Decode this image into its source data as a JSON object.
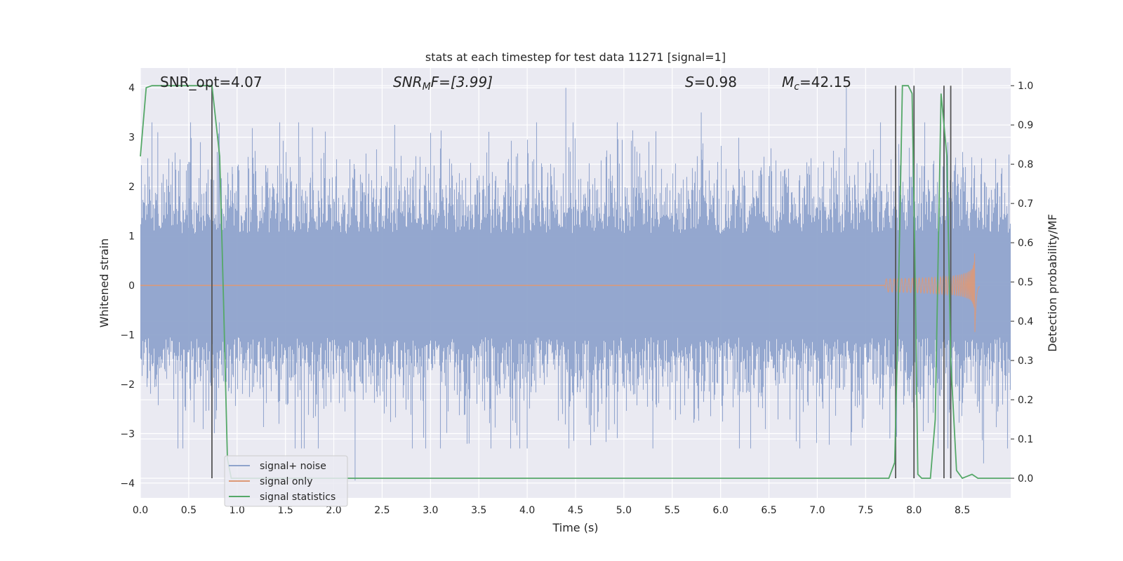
{
  "chart_data": {
    "type": "line",
    "title": "stats at each timestep for test data 11271 [signal=1]",
    "xlabel": "Time (s)",
    "ylabel": "Whitened strain",
    "y2label": "Detection probability/MF",
    "xlim": [
      0.0,
      9.0
    ],
    "ylim": [
      -4.3,
      4.4
    ],
    "y2lim": [
      -0.05,
      1.045
    ],
    "xticks": [
      "0.0",
      "0.5",
      "1.0",
      "1.5",
      "2.0",
      "2.5",
      "3.0",
      "3.5",
      "4.0",
      "4.5",
      "5.0",
      "5.5",
      "6.0",
      "6.5",
      "7.0",
      "7.5",
      "8.0",
      "8.5"
    ],
    "yticks": [
      "4",
      "3",
      "2",
      "1",
      "0",
      "−1",
      "−2",
      "−3",
      "−4"
    ],
    "y2ticks": [
      "1.0",
      "0.9",
      "0.8",
      "0.7",
      "0.6",
      "0.5",
      "0.4",
      "0.3",
      "0.2",
      "0.1",
      "0.0"
    ],
    "grid": true,
    "legend_position": "lower-left",
    "annotations": {
      "snr_opt": "SNR_opt=4.07",
      "snr_mf_main": "SNR",
      "snr_mf_sub": "M",
      "snr_mf_tail": "F=[3.99]",
      "s_var": "S",
      "s_val": "=0.98",
      "mc_var": "M",
      "mc_sub": "c",
      "mc_val": "=42.15"
    },
    "series": [
      {
        "name": "signal+ noise",
        "color": "#8fa3cc",
        "description_values": "dense noise ranging approximately from -4 to 4",
        "peaks": [
          [
            0.18,
            3.1
          ],
          [
            0.5,
            2.5
          ],
          [
            0.95,
            2.4
          ],
          [
            1.78,
            3.2
          ],
          [
            2.22,
            -3.95
          ],
          [
            2.63,
            3.25
          ],
          [
            3.4,
            -3.2
          ],
          [
            4.4,
            4.0
          ],
          [
            4.0,
            -3.3
          ],
          [
            5.3,
            -3.3
          ],
          [
            5.8,
            3.5
          ],
          [
            7.3,
            4.0
          ],
          [
            7.75,
            -3.1
          ],
          [
            8.72,
            -3.6
          ]
        ]
      },
      {
        "name": "signal only",
        "color": "#dd9977",
        "chirp_start": 7.7,
        "chirp_peak_time": 8.63,
        "chirp_peak_amp": 0.98,
        "chirp_peak_amp_neg": -0.95
      },
      {
        "name": "signal statistics",
        "color": "#55a868",
        "x": [
          0.0,
          0.06,
          0.12,
          0.2,
          0.3,
          0.4,
          0.5,
          0.6,
          0.68,
          0.74,
          0.82,
          0.86,
          0.9,
          0.94,
          1.0,
          1.5,
          2.0,
          3.0,
          4.0,
          5.0,
          6.0,
          7.0,
          7.5,
          7.74,
          7.8,
          7.83,
          7.88,
          7.94,
          7.98,
          8.01,
          8.04,
          8.08,
          8.12,
          8.17,
          8.22,
          8.28,
          8.34,
          8.38,
          8.44,
          8.5,
          8.55,
          8.6,
          8.66,
          8.72,
          8.8,
          8.9,
          9.0
        ],
        "y": [
          0.82,
          0.995,
          1.0,
          1.0,
          1.0,
          1.0,
          1.0,
          1.0,
          1.0,
          1.0,
          0.82,
          0.45,
          0.05,
          0.0,
          0.0,
          0.0,
          0.0,
          0.0,
          0.0,
          0.0,
          0.0,
          0.0,
          0.0,
          0.0,
          0.04,
          0.35,
          1.0,
          1.0,
          0.98,
          0.55,
          0.01,
          0.0,
          0.0,
          0.0,
          0.15,
          0.98,
          0.82,
          0.3,
          0.02,
          0.0,
          0.005,
          0.01,
          0.0,
          0.0,
          0.0,
          0.0,
          0.0
        ]
      }
    ],
    "vertical_lines_s": [
      0.74,
      7.81,
      8.0,
      8.31,
      8.38
    ],
    "vline_color": "#555555"
  }
}
